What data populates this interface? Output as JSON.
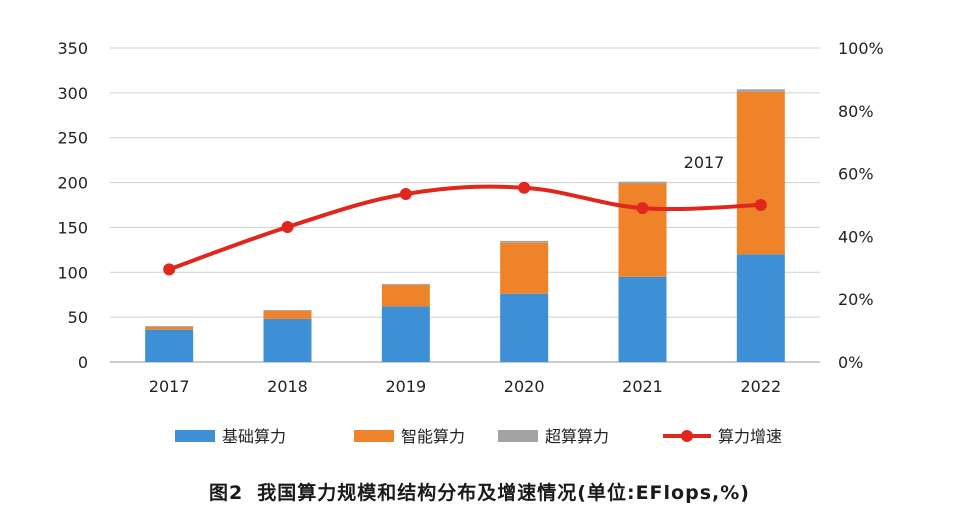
{
  "chart_data": {
    "type": "bar",
    "stacked": true,
    "title": "",
    "categories": [
      "2017",
      "2018",
      "2019",
      "2020",
      "2021",
      "2022"
    ],
    "series": [
      {
        "name": "基础算力",
        "type": "bar",
        "axis": "left",
        "color": "#3d8fd6",
        "values": [
          36,
          48,
          62,
          76,
          95,
          120
        ]
      },
      {
        "name": "智能算力",
        "type": "bar",
        "axis": "left",
        "color": "#ee8329",
        "values": [
          3,
          9,
          24,
          57,
          104,
          181
        ]
      },
      {
        "name": "超算算力",
        "type": "bar",
        "axis": "left",
        "color": "#a3a3a3",
        "values": [
          1,
          1,
          1,
          2,
          2,
          3
        ]
      },
      {
        "name": "算力增速",
        "type": "line",
        "axis": "right",
        "color": "#e1261c",
        "values": [
          29.5,
          43,
          53.5,
          55.5,
          49,
          50
        ]
      }
    ],
    "y_left": {
      "min": 0,
      "max": 350,
      "ticks": [
        0,
        50,
        100,
        150,
        200,
        250,
        300,
        350
      ]
    },
    "y_right": {
      "min": 0,
      "max": 100,
      "ticks": [
        "0%",
        "20%",
        "40%",
        "60%",
        "80%",
        "100%"
      ]
    },
    "annotation": "2017",
    "grid": true,
    "legend_position": "bottom"
  },
  "caption": {
    "figure_label": "图2",
    "text": "我国算力规模和结构分布及增速情况(单位:EFlops,%)"
  }
}
